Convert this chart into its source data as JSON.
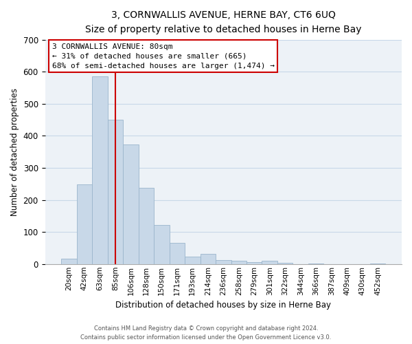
{
  "title": "3, CORNWALLIS AVENUE, HERNE BAY, CT6 6UQ",
  "subtitle": "Size of property relative to detached houses in Herne Bay",
  "xlabel": "Distribution of detached houses by size in Herne Bay",
  "ylabel": "Number of detached properties",
  "bar_labels": [
    "20sqm",
    "42sqm",
    "63sqm",
    "85sqm",
    "106sqm",
    "128sqm",
    "150sqm",
    "171sqm",
    "193sqm",
    "214sqm",
    "236sqm",
    "258sqm",
    "279sqm",
    "301sqm",
    "322sqm",
    "344sqm",
    "366sqm",
    "387sqm",
    "409sqm",
    "430sqm",
    "452sqm"
  ],
  "bar_values": [
    17,
    248,
    585,
    450,
    372,
    238,
    121,
    67,
    24,
    31,
    12,
    10,
    5,
    10,
    3,
    0,
    2,
    0,
    0,
    0,
    2
  ],
  "bar_color": "#c8d8e8",
  "bar_edge_color": "#9ab5cc",
  "vline_x": 3.0,
  "vline_color": "#cc0000",
  "ylim": [
    0,
    700
  ],
  "yticks": [
    0,
    100,
    200,
    300,
    400,
    500,
    600,
    700
  ],
  "annotation_title": "3 CORNWALLIS AVENUE: 80sqm",
  "annotation_line1": "← 31% of detached houses are smaller (665)",
  "annotation_line2": "68% of semi-detached houses are larger (1,474) →",
  "footer_line1": "Contains HM Land Registry data © Crown copyright and database right 2024.",
  "footer_line2": "Contains public sector information licensed under the Open Government Licence v3.0.",
  "grid_color": "#c8d8e8",
  "background_color": "#ffffff",
  "plot_background_color": "#edf2f7"
}
